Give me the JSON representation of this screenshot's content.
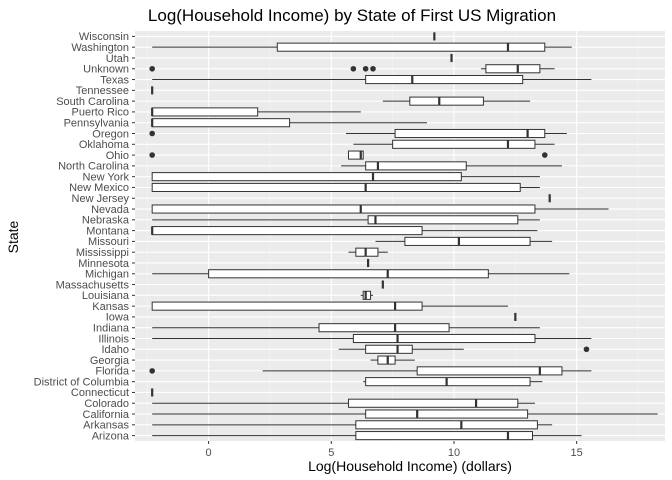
{
  "chart_data": {
    "type": "boxplot",
    "orientation": "horizontal",
    "title": "Log(Household Income) by State of First US Migration",
    "xlabel": "Log(Household Income) (dollars)",
    "ylabel": "State",
    "xlim": [
      -3.0,
      18.6
    ],
    "xticks": [
      0,
      5,
      10,
      15
    ],
    "grid": true,
    "legend": "none",
    "colors": {
      "panel": "#ebebeb",
      "grid_major": "#ffffff",
      "box_fill": "#ffffff",
      "box_line": "#333333",
      "tick_text": "#4d4d4d"
    },
    "categories": [
      "Arizona",
      "Arkansas",
      "California",
      "Colorado",
      "Connecticut",
      "District of Columbia",
      "Florida",
      "Georgia",
      "Idaho",
      "Illinois",
      "Indiana",
      "Iowa",
      "Kansas",
      "Louisiana",
      "Massachusetts",
      "Michigan",
      "Minnesota",
      "Mississippi",
      "Missouri",
      "Montana",
      "Nebraska",
      "Nevada",
      "New Jersey",
      "New Mexico",
      "New York",
      "North Carolina",
      "Ohio",
      "Oklahoma",
      "Oregon",
      "Pennsylvania",
      "Puerto Rico",
      "South Carolina",
      "Tennessee",
      "Texas",
      "Unknown",
      "Utah",
      "Washington",
      "Wisconsin"
    ],
    "boxes": [
      {
        "state": "Arizona",
        "whisker_low": -2.3,
        "q1": 6.0,
        "median": 12.2,
        "q3": 13.2,
        "whisker_high": 15.2,
        "outliers": []
      },
      {
        "state": "Arkansas",
        "whisker_low": -2.3,
        "q1": 6.0,
        "median": 10.3,
        "q3": 13.4,
        "whisker_high": 14.0,
        "outliers": []
      },
      {
        "state": "California",
        "whisker_low": -2.3,
        "q1": 6.4,
        "median": 8.5,
        "q3": 13.0,
        "whisker_high": 18.3,
        "outliers": []
      },
      {
        "state": "Colorado",
        "whisker_low": -2.3,
        "q1": 5.7,
        "median": 10.9,
        "q3": 12.6,
        "whisker_high": 13.3,
        "outliers": []
      },
      {
        "state": "Connecticut",
        "whisker_low": -2.3,
        "q1": -2.3,
        "median": -2.3,
        "q3": -2.3,
        "whisker_high": -2.3,
        "outliers": []
      },
      {
        "state": "District of Columbia",
        "whisker_low": 6.3,
        "q1": 6.4,
        "median": 9.7,
        "q3": 13.1,
        "whisker_high": 13.6,
        "outliers": []
      },
      {
        "state": "Florida",
        "whisker_low": 2.2,
        "q1": 8.5,
        "median": 13.5,
        "q3": 14.4,
        "whisker_high": 15.6,
        "outliers": [
          -2.3
        ]
      },
      {
        "state": "Georgia",
        "whisker_low": 6.6,
        "q1": 6.9,
        "median": 7.3,
        "q3": 7.6,
        "whisker_high": 8.4,
        "outliers": []
      },
      {
        "state": "Idaho",
        "whisker_low": 5.3,
        "q1": 6.4,
        "median": 7.7,
        "q3": 8.3,
        "whisker_high": 10.4,
        "outliers": [
          15.4
        ]
      },
      {
        "state": "Illinois",
        "whisker_low": -2.3,
        "q1": 5.9,
        "median": 7.7,
        "q3": 13.3,
        "whisker_high": 15.6,
        "outliers": []
      },
      {
        "state": "Indiana",
        "whisker_low": -2.3,
        "q1": 4.5,
        "median": 7.6,
        "q3": 9.8,
        "whisker_high": 13.5,
        "outliers": []
      },
      {
        "state": "Iowa",
        "whisker_low": 12.5,
        "q1": 12.5,
        "median": 12.5,
        "q3": 12.5,
        "whisker_high": 12.5,
        "outliers": []
      },
      {
        "state": "Kansas",
        "whisker_low": -2.3,
        "q1": -2.3,
        "median": 7.6,
        "q3": 8.7,
        "whisker_high": 12.2,
        "outliers": []
      },
      {
        "state": "Louisiana",
        "whisker_low": 6.2,
        "q1": 6.3,
        "median": 6.4,
        "q3": 6.6,
        "whisker_high": 6.7,
        "outliers": []
      },
      {
        "state": "Massachusetts",
        "whisker_low": 7.1,
        "q1": 7.1,
        "median": 7.1,
        "q3": 7.1,
        "whisker_high": 7.1,
        "outliers": []
      },
      {
        "state": "Michigan",
        "whisker_low": -2.3,
        "q1": 0.0,
        "median": 7.3,
        "q3": 11.4,
        "whisker_high": 14.7,
        "outliers": []
      },
      {
        "state": "Minnesota",
        "whisker_low": 6.5,
        "q1": 6.5,
        "median": 6.5,
        "q3": 6.5,
        "whisker_high": 6.5,
        "outliers": []
      },
      {
        "state": "Mississippi",
        "whisker_low": 5.7,
        "q1": 6.0,
        "median": 6.4,
        "q3": 6.9,
        "whisker_high": 7.3,
        "outliers": []
      },
      {
        "state": "Missouri",
        "whisker_low": 6.8,
        "q1": 8.0,
        "median": 10.2,
        "q3": 13.1,
        "whisker_high": 14.0,
        "outliers": []
      },
      {
        "state": "Montana",
        "whisker_low": -2.3,
        "q1": -2.3,
        "median": -2.3,
        "q3": 8.7,
        "whisker_high": 13.4,
        "outliers": []
      },
      {
        "state": "Nebraska",
        "whisker_low": -2.3,
        "q1": 6.5,
        "median": 6.8,
        "q3": 12.6,
        "whisker_high": 13.5,
        "outliers": []
      },
      {
        "state": "Nevada",
        "whisker_low": -2.3,
        "q1": -2.3,
        "median": 6.2,
        "q3": 13.3,
        "whisker_high": 16.3,
        "outliers": []
      },
      {
        "state": "New Jersey",
        "whisker_low": 13.9,
        "q1": 13.9,
        "median": 13.9,
        "q3": 13.9,
        "whisker_high": 13.9,
        "outliers": []
      },
      {
        "state": "New Mexico",
        "whisker_low": -2.3,
        "q1": -2.3,
        "median": 6.4,
        "q3": 12.7,
        "whisker_high": 13.5,
        "outliers": []
      },
      {
        "state": "New York",
        "whisker_low": -2.3,
        "q1": -2.3,
        "median": 6.7,
        "q3": 10.3,
        "whisker_high": 13.5,
        "outliers": []
      },
      {
        "state": "North Carolina",
        "whisker_low": 5.4,
        "q1": 6.4,
        "median": 6.9,
        "q3": 10.5,
        "whisker_high": 14.4,
        "outliers": []
      },
      {
        "state": "Ohio",
        "whisker_low": 5.7,
        "q1": 5.7,
        "median": 6.2,
        "q3": 6.3,
        "whisker_high": 6.3,
        "outliers": [
          -2.3,
          13.7
        ]
      },
      {
        "state": "Oklahoma",
        "whisker_low": 5.9,
        "q1": 7.5,
        "median": 12.2,
        "q3": 13.3,
        "whisker_high": 14.1,
        "outliers": []
      },
      {
        "state": "Oregon",
        "whisker_low": 5.6,
        "q1": 7.6,
        "median": 13.0,
        "q3": 13.7,
        "whisker_high": 14.6,
        "outliers": [
          -2.3
        ]
      },
      {
        "state": "Pennsylvania",
        "whisker_low": -2.3,
        "q1": -2.3,
        "median": -2.3,
        "q3": 3.3,
        "whisker_high": 8.9,
        "outliers": []
      },
      {
        "state": "Puerto Rico",
        "whisker_low": -2.3,
        "q1": -2.3,
        "median": -2.3,
        "q3": 2.0,
        "whisker_high": 6.2,
        "outliers": []
      },
      {
        "state": "South Carolina",
        "whisker_low": 7.1,
        "q1": 8.2,
        "median": 9.4,
        "q3": 11.2,
        "whisker_high": 13.1,
        "outliers": []
      },
      {
        "state": "Tennessee",
        "whisker_low": -2.3,
        "q1": -2.3,
        "median": -2.3,
        "q3": -2.3,
        "whisker_high": -2.3,
        "outliers": []
      },
      {
        "state": "Texas",
        "whisker_low": -2.3,
        "q1": 6.4,
        "median": 8.3,
        "q3": 12.8,
        "whisker_high": 15.6,
        "outliers": []
      },
      {
        "state": "Unknown",
        "whisker_low": 11.1,
        "q1": 11.3,
        "median": 12.6,
        "q3": 13.5,
        "whisker_high": 14.1,
        "outliers": [
          -2.3,
          5.9,
          6.4,
          6.7
        ]
      },
      {
        "state": "Utah",
        "whisker_low": 9.9,
        "q1": 9.9,
        "median": 9.9,
        "q3": 9.9,
        "whisker_high": 9.9,
        "outliers": []
      },
      {
        "state": "Washington",
        "whisker_low": -2.3,
        "q1": 2.8,
        "median": 12.2,
        "q3": 13.7,
        "whisker_high": 14.8,
        "outliers": []
      },
      {
        "state": "Wisconsin",
        "whisker_low": 9.2,
        "q1": 9.2,
        "median": 9.2,
        "q3": 9.2,
        "whisker_high": 9.2,
        "outliers": []
      }
    ]
  }
}
